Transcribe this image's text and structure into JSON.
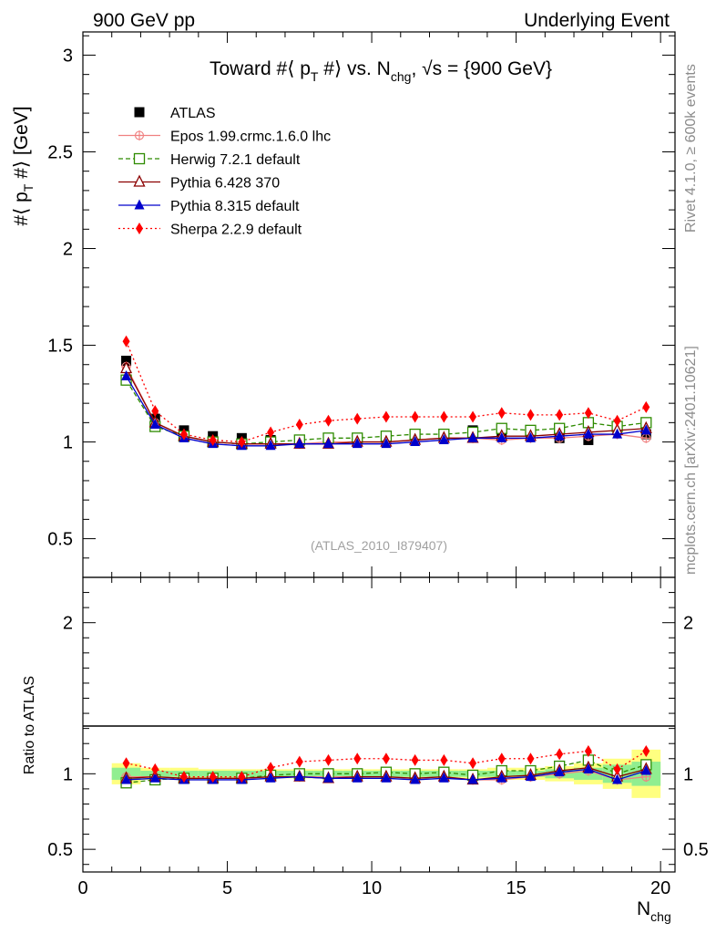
{
  "header": {
    "left": "900 GeV pp",
    "right": "Underlying Event"
  },
  "side_labels": {
    "rivet": "Rivet 4.1.0, ≥ 600k events",
    "mcplots": "mcplots.cern.ch [arXiv:2401.10621]"
  },
  "chart_data": [
    {
      "type": "line",
      "title": "Toward #⟨ p_T #⟩ vs. N_chg, √s = {900 GeV}",
      "title_parts": {
        "a": "Toward #⟨ p",
        "a_sub": "T",
        "b": " #⟩ vs. N",
        "b_sub": "chg",
        "c": ", ",
        "sqrt": "√",
        "c2": "s = {900 GeV}"
      },
      "ylabel": "#⟨ p_T #⟩ [GeV]",
      "ylabel_parts": {
        "a": "#⟨ p",
        "sub": "T",
        "b": " #⟩ [GeV]"
      },
      "xlabel": "N_chg",
      "xlabel_parts": {
        "main": "N",
        "sub": "chg"
      },
      "watermark": "(ATLAS_2010_I879407)",
      "xlim": [
        0,
        20.5
      ],
      "ylim": [
        0.3,
        3.12
      ],
      "y_ticks": [
        "0.5",
        "1",
        "1.5",
        "2",
        "2.5",
        "3"
      ],
      "x_ticks": [
        "0",
        "5",
        "10",
        "15",
        "20"
      ],
      "x": [
        1.5,
        2.5,
        3.5,
        4.5,
        5.5,
        6.5,
        7.5,
        8.5,
        9.5,
        10.5,
        11.5,
        12.5,
        13.5,
        14.5,
        15.5,
        16.5,
        17.5,
        18.5,
        19.5
      ],
      "series": [
        {
          "name": "ATLAS",
          "color": "#000000",
          "marker": "square-filled",
          "line": "none",
          "values": [
            1.42,
            1.12,
            1.06,
            1.03,
            1.02,
            1.01,
            1.01,
            1.02,
            1.02,
            1.02,
            1.04,
            1.04,
            1.06,
            1.05,
            1.04,
            1.02,
            1.01,
            1.08,
            1.04
          ]
        },
        {
          "name": "Epos 1.99.crmc.1.6.0 lhc",
          "color": "#f08080",
          "marker": "cross-open",
          "line": "solid",
          "values": [
            1.39,
            1.1,
            1.03,
            1.0,
            0.99,
            0.99,
            0.99,
            1.0,
            1.0,
            1.0,
            1.01,
            1.02,
            1.02,
            1.01,
            1.02,
            1.02,
            1.03,
            1.04,
            1.02
          ]
        },
        {
          "name": "Herwig 7.2.1 default",
          "color": "#2e8b00",
          "marker": "square-open",
          "line": "dashed",
          "values": [
            1.32,
            1.08,
            1.03,
            1.0,
            0.99,
            1.0,
            1.01,
            1.02,
            1.02,
            1.03,
            1.04,
            1.04,
            1.05,
            1.07,
            1.06,
            1.07,
            1.1,
            1.08,
            1.1
          ]
        },
        {
          "name": "Pythia 6.428 370",
          "color": "#8b0000",
          "marker": "triangle-open",
          "line": "solid",
          "values": [
            1.38,
            1.1,
            1.03,
            1.0,
            0.99,
            0.99,
            0.99,
            0.99,
            1.0,
            1.0,
            1.01,
            1.02,
            1.02,
            1.03,
            1.03,
            1.04,
            1.05,
            1.06,
            1.07
          ]
        },
        {
          "name": "Pythia 8.315 default",
          "color": "#0000cc",
          "marker": "triangle-filled",
          "line": "solid",
          "values": [
            1.34,
            1.09,
            1.02,
            0.99,
            0.98,
            0.98,
            0.99,
            0.99,
            0.99,
            0.99,
            1.0,
            1.01,
            1.02,
            1.02,
            1.02,
            1.03,
            1.04,
            1.04,
            1.06
          ]
        },
        {
          "name": "Sherpa 2.2.9 default",
          "color": "#ff0000",
          "marker": "diamond-filled",
          "line": "dotted",
          "values": [
            1.52,
            1.16,
            1.04,
            1.01,
            1.0,
            1.05,
            1.09,
            1.11,
            1.12,
            1.13,
            1.13,
            1.13,
            1.13,
            1.15,
            1.14,
            1.14,
            1.15,
            1.11,
            1.18
          ]
        }
      ]
    },
    {
      "type": "line",
      "title": "",
      "ylabel": "Ratio to ATLAS",
      "xlabel": "N_chg",
      "xlim": [
        0,
        20.5
      ],
      "ylim": [
        0.35,
        2.3
      ],
      "y_ticks": [
        "0.5",
        "1",
        "2"
      ],
      "x_ticks": [
        "0",
        "5",
        "10",
        "15",
        "20"
      ],
      "x": [
        1.5,
        2.5,
        3.5,
        4.5,
        5.5,
        6.5,
        7.5,
        8.5,
        9.5,
        10.5,
        11.5,
        12.5,
        13.5,
        14.5,
        15.5,
        16.5,
        17.5,
        18.5,
        19.5
      ],
      "bands": {
        "stat_color": "#90ee90",
        "total_color": "#ffff80",
        "stat_half_width": [
          0.04,
          0.02,
          0.02,
          0.02,
          0.02,
          0.02,
          0.02,
          0.02,
          0.02,
          0.02,
          0.02,
          0.02,
          0.02,
          0.02,
          0.02,
          0.03,
          0.04,
          0.06,
          0.08
        ],
        "total_half_width": [
          0.07,
          0.04,
          0.04,
          0.03,
          0.03,
          0.03,
          0.03,
          0.03,
          0.03,
          0.03,
          0.03,
          0.03,
          0.03,
          0.04,
          0.04,
          0.05,
          0.07,
          0.1,
          0.16
        ]
      },
      "series": [
        {
          "name": "Epos 1.99.crmc.1.6.0 lhc",
          "color": "#f08080",
          "marker": "cross-open",
          "line": "solid",
          "values": [
            0.98,
            0.98,
            0.97,
            0.97,
            0.97,
            0.98,
            0.98,
            0.98,
            0.98,
            0.98,
            0.97,
            0.98,
            0.96,
            0.96,
            0.98,
            1.0,
            1.02,
            0.96,
            0.98
          ]
        },
        {
          "name": "Herwig 7.2.1 default",
          "color": "#2e8b00",
          "marker": "square-open",
          "line": "dashed",
          "values": [
            0.94,
            0.96,
            0.97,
            0.97,
            0.97,
            0.99,
            1.0,
            1.0,
            1.0,
            1.01,
            1.0,
            1.01,
            0.99,
            1.02,
            1.02,
            1.05,
            1.09,
            1.0,
            1.06
          ]
        },
        {
          "name": "Pythia 6.428 370",
          "color": "#8b0000",
          "marker": "triangle-open",
          "line": "solid",
          "values": [
            0.97,
            0.98,
            0.97,
            0.97,
            0.97,
            0.98,
            0.98,
            0.97,
            0.98,
            0.98,
            0.97,
            0.98,
            0.96,
            0.98,
            0.99,
            1.02,
            1.04,
            0.98,
            1.03
          ]
        },
        {
          "name": "Pythia 8.315 default",
          "color": "#0000cc",
          "marker": "triangle-filled",
          "line": "solid",
          "values": [
            0.96,
            0.97,
            0.96,
            0.96,
            0.96,
            0.97,
            0.98,
            0.97,
            0.97,
            0.97,
            0.96,
            0.97,
            0.96,
            0.97,
            0.98,
            1.01,
            1.03,
            0.96,
            1.02
          ]
        },
        {
          "name": "Sherpa 2.2.9 default",
          "color": "#ff0000",
          "marker": "diamond-filled",
          "line": "dotted",
          "values": [
            1.07,
            1.03,
            0.98,
            0.98,
            0.98,
            1.04,
            1.08,
            1.09,
            1.1,
            1.1,
            1.09,
            1.09,
            1.07,
            1.1,
            1.1,
            1.13,
            1.15,
            1.03,
            1.15
          ]
        }
      ]
    }
  ]
}
